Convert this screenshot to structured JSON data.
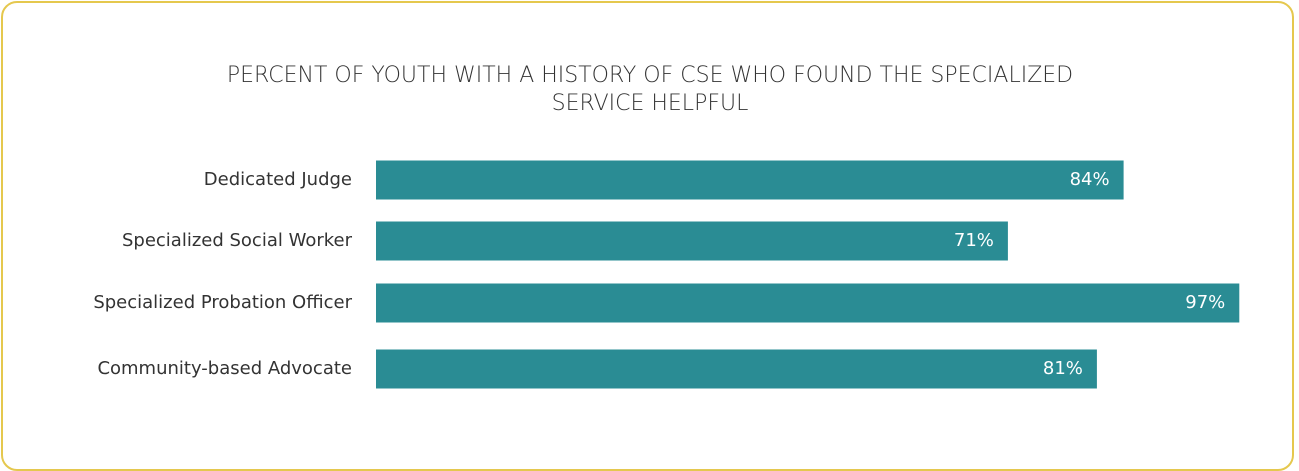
{
  "chart_data": {
    "type": "bar",
    "orientation": "horizontal",
    "title": "PERCENT OF YOUTH WITH A HISTORY OF CSE WHO FOUND THE SPECIALIZED SERVICE HELPFUL",
    "categories": [
      "Dedicated Judge",
      "Specialized Social Worker",
      "Specialized Probation Officer",
      "Community-based Advocate"
    ],
    "values": [
      84,
      71,
      97,
      81
    ],
    "value_labels": [
      "84%",
      "71%",
      "97%",
      "81%"
    ],
    "color": "#2a8c94"
  }
}
